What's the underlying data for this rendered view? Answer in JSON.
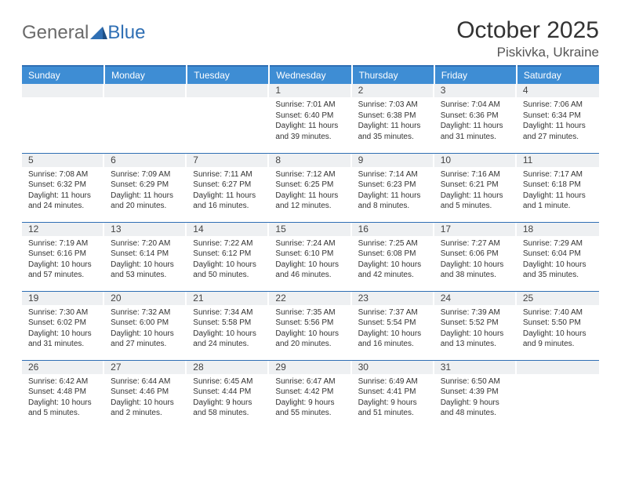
{
  "logo": {
    "text1": "General",
    "text2": "Blue",
    "color": "#2f6fb4"
  },
  "title": "October 2025",
  "location": "Piskivka, Ukraine",
  "styling": {
    "header_bg": "#3e8dd4",
    "border_color": "#2f6fb4",
    "daynum_bg": "#eef0f2",
    "text_color": "#333333",
    "body_fontsize": 10,
    "header_fontsize": 12,
    "title_fontsize": 30
  },
  "weekdays": [
    "Sunday",
    "Monday",
    "Tuesday",
    "Wednesday",
    "Thursday",
    "Friday",
    "Saturday"
  ],
  "weeks": [
    [
      {
        "n": "",
        "lines": []
      },
      {
        "n": "",
        "lines": []
      },
      {
        "n": "",
        "lines": []
      },
      {
        "n": "1",
        "lines": [
          "Sunrise: 7:01 AM",
          "Sunset: 6:40 PM",
          "Daylight: 11 hours",
          "and 39 minutes."
        ]
      },
      {
        "n": "2",
        "lines": [
          "Sunrise: 7:03 AM",
          "Sunset: 6:38 PM",
          "Daylight: 11 hours",
          "and 35 minutes."
        ]
      },
      {
        "n": "3",
        "lines": [
          "Sunrise: 7:04 AM",
          "Sunset: 6:36 PM",
          "Daylight: 11 hours",
          "and 31 minutes."
        ]
      },
      {
        "n": "4",
        "lines": [
          "Sunrise: 7:06 AM",
          "Sunset: 6:34 PM",
          "Daylight: 11 hours",
          "and 27 minutes."
        ]
      }
    ],
    [
      {
        "n": "5",
        "lines": [
          "Sunrise: 7:08 AM",
          "Sunset: 6:32 PM",
          "Daylight: 11 hours",
          "and 24 minutes."
        ]
      },
      {
        "n": "6",
        "lines": [
          "Sunrise: 7:09 AM",
          "Sunset: 6:29 PM",
          "Daylight: 11 hours",
          "and 20 minutes."
        ]
      },
      {
        "n": "7",
        "lines": [
          "Sunrise: 7:11 AM",
          "Sunset: 6:27 PM",
          "Daylight: 11 hours",
          "and 16 minutes."
        ]
      },
      {
        "n": "8",
        "lines": [
          "Sunrise: 7:12 AM",
          "Sunset: 6:25 PM",
          "Daylight: 11 hours",
          "and 12 minutes."
        ]
      },
      {
        "n": "9",
        "lines": [
          "Sunrise: 7:14 AM",
          "Sunset: 6:23 PM",
          "Daylight: 11 hours",
          "and 8 minutes."
        ]
      },
      {
        "n": "10",
        "lines": [
          "Sunrise: 7:16 AM",
          "Sunset: 6:21 PM",
          "Daylight: 11 hours",
          "and 5 minutes."
        ]
      },
      {
        "n": "11",
        "lines": [
          "Sunrise: 7:17 AM",
          "Sunset: 6:18 PM",
          "Daylight: 11 hours",
          "and 1 minute."
        ]
      }
    ],
    [
      {
        "n": "12",
        "lines": [
          "Sunrise: 7:19 AM",
          "Sunset: 6:16 PM",
          "Daylight: 10 hours",
          "and 57 minutes."
        ]
      },
      {
        "n": "13",
        "lines": [
          "Sunrise: 7:20 AM",
          "Sunset: 6:14 PM",
          "Daylight: 10 hours",
          "and 53 minutes."
        ]
      },
      {
        "n": "14",
        "lines": [
          "Sunrise: 7:22 AM",
          "Sunset: 6:12 PM",
          "Daylight: 10 hours",
          "and 50 minutes."
        ]
      },
      {
        "n": "15",
        "lines": [
          "Sunrise: 7:24 AM",
          "Sunset: 6:10 PM",
          "Daylight: 10 hours",
          "and 46 minutes."
        ]
      },
      {
        "n": "16",
        "lines": [
          "Sunrise: 7:25 AM",
          "Sunset: 6:08 PM",
          "Daylight: 10 hours",
          "and 42 minutes."
        ]
      },
      {
        "n": "17",
        "lines": [
          "Sunrise: 7:27 AM",
          "Sunset: 6:06 PM",
          "Daylight: 10 hours",
          "and 38 minutes."
        ]
      },
      {
        "n": "18",
        "lines": [
          "Sunrise: 7:29 AM",
          "Sunset: 6:04 PM",
          "Daylight: 10 hours",
          "and 35 minutes."
        ]
      }
    ],
    [
      {
        "n": "19",
        "lines": [
          "Sunrise: 7:30 AM",
          "Sunset: 6:02 PM",
          "Daylight: 10 hours",
          "and 31 minutes."
        ]
      },
      {
        "n": "20",
        "lines": [
          "Sunrise: 7:32 AM",
          "Sunset: 6:00 PM",
          "Daylight: 10 hours",
          "and 27 minutes."
        ]
      },
      {
        "n": "21",
        "lines": [
          "Sunrise: 7:34 AM",
          "Sunset: 5:58 PM",
          "Daylight: 10 hours",
          "and 24 minutes."
        ]
      },
      {
        "n": "22",
        "lines": [
          "Sunrise: 7:35 AM",
          "Sunset: 5:56 PM",
          "Daylight: 10 hours",
          "and 20 minutes."
        ]
      },
      {
        "n": "23",
        "lines": [
          "Sunrise: 7:37 AM",
          "Sunset: 5:54 PM",
          "Daylight: 10 hours",
          "and 16 minutes."
        ]
      },
      {
        "n": "24",
        "lines": [
          "Sunrise: 7:39 AM",
          "Sunset: 5:52 PM",
          "Daylight: 10 hours",
          "and 13 minutes."
        ]
      },
      {
        "n": "25",
        "lines": [
          "Sunrise: 7:40 AM",
          "Sunset: 5:50 PM",
          "Daylight: 10 hours",
          "and 9 minutes."
        ]
      }
    ],
    [
      {
        "n": "26",
        "lines": [
          "Sunrise: 6:42 AM",
          "Sunset: 4:48 PM",
          "Daylight: 10 hours",
          "and 5 minutes."
        ]
      },
      {
        "n": "27",
        "lines": [
          "Sunrise: 6:44 AM",
          "Sunset: 4:46 PM",
          "Daylight: 10 hours",
          "and 2 minutes."
        ]
      },
      {
        "n": "28",
        "lines": [
          "Sunrise: 6:45 AM",
          "Sunset: 4:44 PM",
          "Daylight: 9 hours",
          "and 58 minutes."
        ]
      },
      {
        "n": "29",
        "lines": [
          "Sunrise: 6:47 AM",
          "Sunset: 4:42 PM",
          "Daylight: 9 hours",
          "and 55 minutes."
        ]
      },
      {
        "n": "30",
        "lines": [
          "Sunrise: 6:49 AM",
          "Sunset: 4:41 PM",
          "Daylight: 9 hours",
          "and 51 minutes."
        ]
      },
      {
        "n": "31",
        "lines": [
          "Sunrise: 6:50 AM",
          "Sunset: 4:39 PM",
          "Daylight: 9 hours",
          "and 48 minutes."
        ]
      },
      {
        "n": "",
        "lines": []
      }
    ]
  ]
}
